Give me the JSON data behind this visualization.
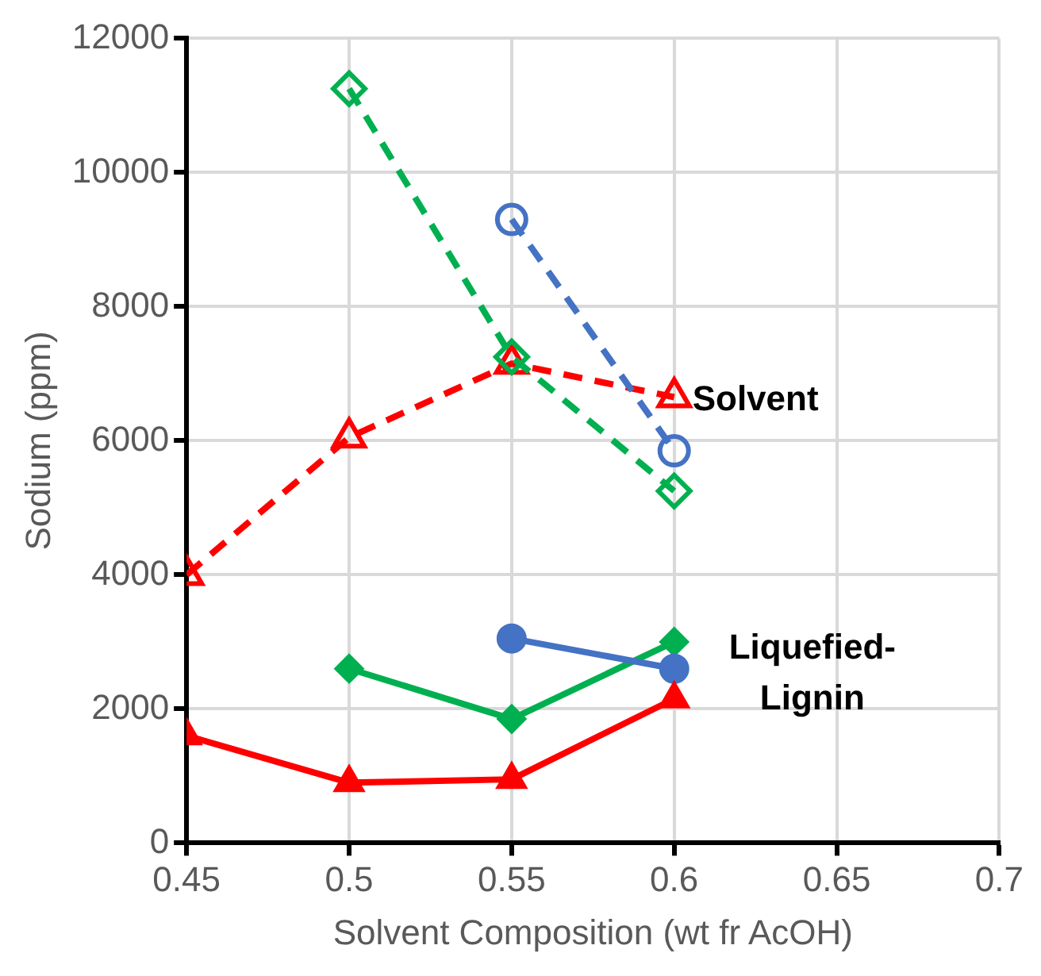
{
  "chart_data": {
    "type": "line",
    "xlabel": "Solvent Composition (wt fr AcOH)",
    "ylabel": "Sodium (ppm)",
    "x": [
      0.45,
      0.5,
      0.55,
      0.6
    ],
    "xlim": [
      0.45,
      0.7
    ],
    "xticks": [
      0.45,
      0.5,
      0.55,
      0.6,
      0.65,
      0.7
    ],
    "ylim": [
      0,
      12000
    ],
    "yticks": [
      0,
      2000,
      4000,
      6000,
      8000,
      10000,
      12000
    ],
    "grid": true,
    "legend": false,
    "annotations": [
      "Solvent",
      "Liquefied-Lignin"
    ],
    "series": [
      {
        "color": "#ff0000",
        "marker": "triangle",
        "line_style": "dashed",
        "values": [
          4000,
          6050,
          7150,
          6650
        ]
      },
      {
        "color": "#00b050",
        "marker": "diamond",
        "line_style": "dashed",
        "values": [
          null,
          11250,
          7250,
          5250
        ]
      },
      {
        "color": "#4472c4",
        "marker": "circle",
        "line_style": "dashed",
        "values": [
          null,
          null,
          9300,
          5850
        ]
      },
      {
        "color": "#00b050",
        "marker": "diamond",
        "line_style": "solid",
        "values": [
          null,
          2600,
          1850,
          3000
        ]
      },
      {
        "color": "#4472c4",
        "marker": "circle",
        "line_style": "solid",
        "values": [
          null,
          null,
          3050,
          2600
        ]
      },
      {
        "color": "#ff0000",
        "marker": "triangle",
        "line_style": "solid",
        "values": [
          1600,
          900,
          950,
          2150
        ]
      }
    ]
  }
}
